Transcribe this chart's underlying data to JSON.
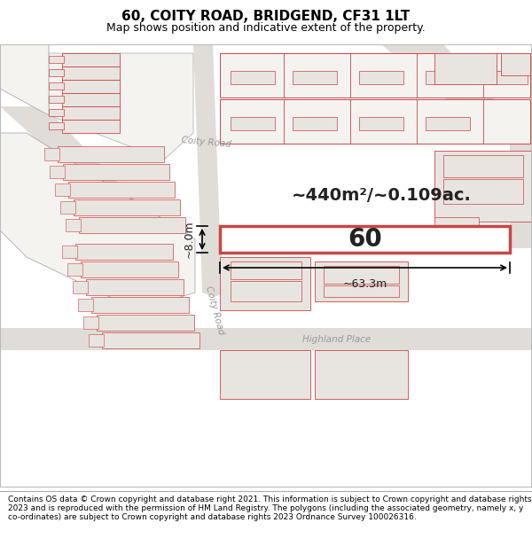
{
  "title": "60, COITY ROAD, BRIDGEND, CF31 1LT",
  "subtitle": "Map shows position and indicative extent of the property.",
  "footer": "Contains OS data © Crown copyright and database right 2021. This information is subject to Crown copyright and database rights 2023 and is reproduced with the permission of HM Land Registry. The polygons (including the associated geometry, namely x, y co-ordinates) are subject to Crown copyright and database rights 2023 Ordnance Survey 100026316.",
  "map_bg": "#f5f3f0",
  "road_color": "#e0ddd8",
  "building_fill": "#e8e5e0",
  "highlight_fill": "#ffffff",
  "red": "#cc4444",
  "lgray": "#aaaaaa",
  "dgray": "#888888",
  "area_text": "~440m²/~0.109ac.",
  "label_60": "60",
  "dim_width": "~63.3m",
  "dim_height": "~8.0m",
  "road_label_upper": "Coity Road",
  "road_label_lower": "Coity Road",
  "place_label": "Highland Place",
  "title_fontsize": 11,
  "subtitle_fontsize": 9,
  "footer_fontsize": 6.5,
  "map_border_color": "#cccccc"
}
